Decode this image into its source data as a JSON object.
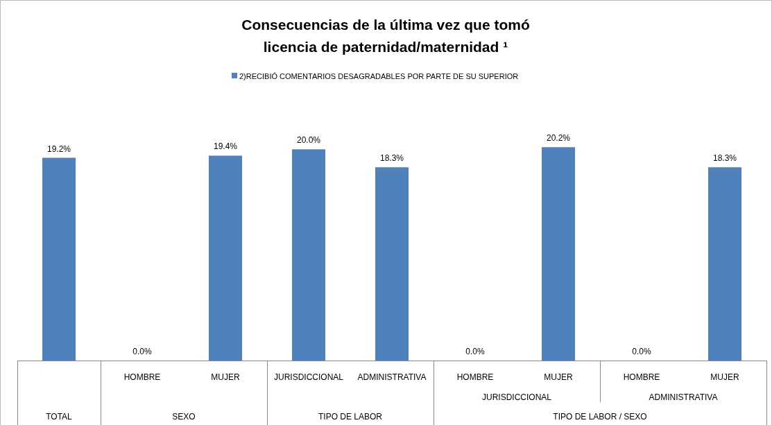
{
  "chart_data": {
    "type": "bar",
    "title": "Consecuencias de la última vez que tomó licencia de paternidad/maternidad ¹",
    "categories": [
      null,
      "HOMBRE",
      "MUJER",
      "JURISDICCIONAL",
      "ADMINISTRATIVA",
      "HOMBRE",
      "MUJER",
      "HOMBRE",
      "MUJER"
    ],
    "series": [
      {
        "name": "2)RECIBIÓ COMENTARIOS  DESAGRADABLES POR PARTE DE SU SUPERIOR",
        "color": "#4f81bd",
        "values": [
          19.2,
          0.0,
          19.4,
          20.0,
          18.3,
          0.0,
          20.2,
          0.0,
          18.3
        ],
        "value_labels": [
          "19.2%",
          "0.0%",
          "19.4%",
          "20.0%",
          "18.3%",
          "0.0%",
          "20.2%",
          "0.0%",
          "18.3%"
        ]
      }
    ],
    "annotations": [
      "TOTAL",
      "SEXO",
      "TIPO DE LABOR",
      "TIPO DE LABOR / SEXO",
      "JURISDICCIONAL",
      "ADMINISTRATIVA"
    ],
    "legend": "top"
  }
}
